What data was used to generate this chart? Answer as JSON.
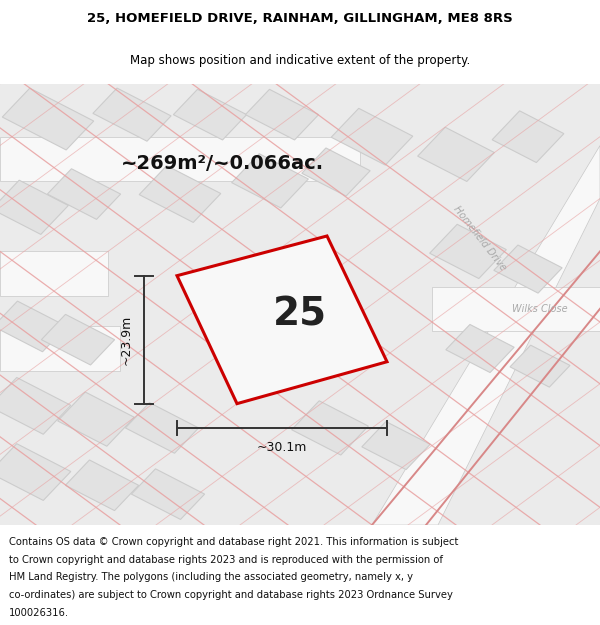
{
  "title_line1": "25, HOMEFIELD DRIVE, RAINHAM, GILLINGHAM, ME8 8RS",
  "title_line2": "Map shows position and indicative extent of the property.",
  "area_label": "~269m²/~0.066ac.",
  "property_number": "25",
  "width_label": "~30.1m",
  "height_label": "~23.9m",
  "property_stroke": "#cc0000",
  "property_fill": "#f8f8f8",
  "dimension_color": "#333333",
  "road_label_color": "#aaaaaa",
  "map_bg": "#ebebeb",
  "block_fill": "#e2e2e2",
  "block_stroke": "#cccccc",
  "road_fill": "#f8f8f8",
  "pink_line": "#e8a0a0",
  "footer_lines": [
    "Contains OS data © Crown copyright and database right 2021. This information is subject",
    "to Crown copyright and database rights 2023 and is reproduced with the permission of",
    "HM Land Registry. The polygons (including the associated geometry, namely x, y",
    "co-ordinates) are subject to Crown copyright and database rights 2023 Ordnance Survey",
    "100026316."
  ],
  "title_fontsize": 9.5,
  "subtitle_fontsize": 8.5,
  "footer_fontsize": 7.2,
  "area_fontsize": 14,
  "number_fontsize": 28,
  "dim_fontsize": 9
}
